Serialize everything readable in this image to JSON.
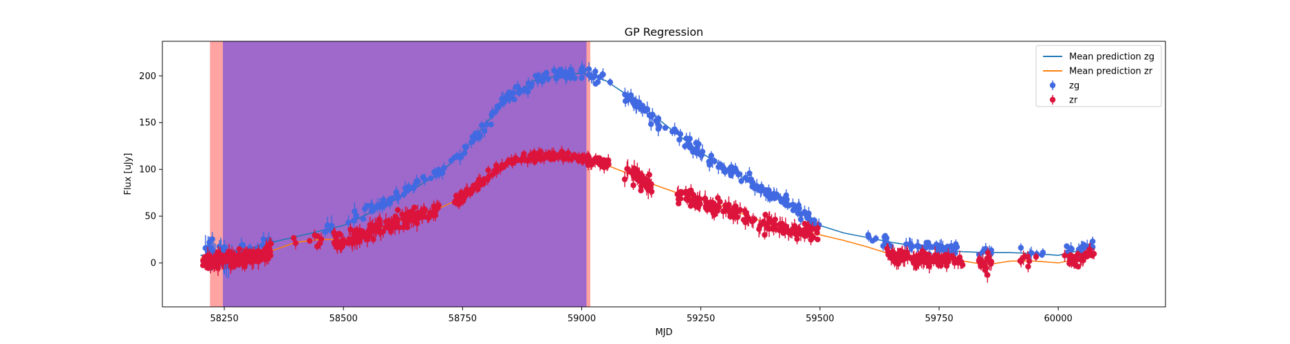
{
  "chart_data": {
    "type": "scatter",
    "title": "GP Regression",
    "xlabel": "MJD",
    "ylabel": "Flux [uJy]",
    "xlim": [
      58120,
      60225
    ],
    "ylim": [
      -47,
      237
    ],
    "xticks": [
      58250,
      58500,
      58750,
      59000,
      59250,
      59500,
      59750,
      60000
    ],
    "yticks": [
      0,
      50,
      100,
      150,
      200
    ],
    "grid": false,
    "legend_position": "top-right",
    "shaded_regions": [
      {
        "x": [
          58220,
          59018
        ],
        "color": "#ff9999",
        "label": ""
      },
      {
        "x": [
          58247,
          59010
        ],
        "color": "#9966cc",
        "label": ""
      }
    ],
    "series": [
      {
        "name": "Mean prediction zg",
        "kind": "line",
        "color": "#1f77b4",
        "x": [
          58200,
          58230,
          58260,
          58300,
          58350,
          58400,
          58450,
          58500,
          58550,
          58600,
          58650,
          58700,
          58750,
          58800,
          58850,
          58900,
          58950,
          59000,
          59050,
          59100,
          59150,
          59200,
          59250,
          59300,
          59350,
          59400,
          59450,
          59500,
          59550,
          59600,
          59650,
          59700,
          59750,
          59800,
          59850,
          59900,
          59950,
          60000,
          60050,
          60070
        ],
        "y": [
          8,
          10,
          12,
          15,
          22,
          28,
          34,
          40,
          52,
          65,
          80,
          95,
          118,
          150,
          178,
          195,
          200,
          203,
          195,
          178,
          158,
          138,
          118,
          102,
          88,
          74,
          57,
          40,
          32,
          27,
          22,
          18,
          14,
          12,
          11,
          11,
          10,
          8,
          14,
          18
        ]
      },
      {
        "name": "Mean prediction zr",
        "kind": "line",
        "color": "#ff7f0e",
        "x": [
          58200,
          58230,
          58260,
          58300,
          58350,
          58400,
          58450,
          58500,
          58550,
          58600,
          58650,
          58700,
          58750,
          58800,
          58850,
          58900,
          58950,
          59000,
          59050,
          59100,
          59150,
          59200,
          59250,
          59300,
          59350,
          59400,
          59450,
          59500,
          59550,
          59600,
          59650,
          59700,
          59750,
          59800,
          59850,
          59900,
          59950,
          60000,
          60050,
          60070
        ],
        "y": [
          5,
          4,
          3,
          6,
          13,
          22,
          25,
          25,
          32,
          42,
          50,
          58,
          70,
          92,
          107,
          113,
          113,
          112,
          105,
          95,
          84,
          75,
          68,
          60,
          50,
          40,
          35,
          30,
          24,
          17,
          9,
          6,
          3,
          2,
          -2,
          2,
          2,
          0,
          5,
          8
        ]
      },
      {
        "name": "zg",
        "kind": "points",
        "color": "#4169e1",
        "anchors": [
          [
            58200,
            8
          ],
          [
            58230,
            8
          ],
          [
            58260,
            8
          ],
          [
            58300,
            13
          ],
          [
            58350,
            20
          ],
          [
            58400,
            28
          ],
          [
            58450,
            34
          ],
          [
            58500,
            42
          ],
          [
            58550,
            55
          ],
          [
            58600,
            68
          ],
          [
            58650,
            82
          ],
          [
            58700,
            96
          ],
          [
            58750,
            118
          ],
          [
            58800,
            150
          ],
          [
            58850,
            180
          ],
          [
            58900,
            195
          ],
          [
            58950,
            203
          ],
          [
            59000,
            205
          ],
          [
            59050,
            193
          ],
          [
            59100,
            178
          ],
          [
            59150,
            155
          ],
          [
            59200,
            137
          ],
          [
            59250,
            118
          ],
          [
            59300,
            102
          ],
          [
            59350,
            88
          ],
          [
            59400,
            72
          ],
          [
            59450,
            58
          ],
          [
            59500,
            40
          ],
          [
            59550,
            32
          ],
          [
            59600,
            28
          ],
          [
            59650,
            22
          ],
          [
            59700,
            17
          ],
          [
            59750,
            14
          ],
          [
            59800,
            12
          ],
          [
            59850,
            11
          ],
          [
            59900,
            11
          ],
          [
            59950,
            10
          ],
          [
            60000,
            8
          ],
          [
            60050,
            14
          ],
          [
            60070,
            18
          ]
        ],
        "segments": [
          [
            58210,
            58260,
            40,
            10
          ],
          [
            58260,
            58350,
            30,
            6
          ],
          [
            58450,
            58530,
            8,
            9
          ],
          [
            58540,
            59060,
            150,
            5
          ],
          [
            59090,
            59500,
            140,
            5
          ],
          [
            59590,
            59650,
            12,
            4
          ],
          [
            59680,
            59790,
            45,
            5
          ],
          [
            59830,
            59860,
            8,
            4
          ],
          [
            59920,
            59970,
            8,
            4
          ],
          [
            60010,
            60075,
            20,
            5
          ]
        ]
      },
      {
        "name": "zr",
        "kind": "points",
        "color": "#dc143c",
        "anchors": [
          [
            58200,
            0
          ],
          [
            58230,
            2
          ],
          [
            58260,
            3
          ],
          [
            58300,
            6
          ],
          [
            58350,
            13
          ],
          [
            58400,
            21
          ],
          [
            58450,
            26
          ],
          [
            58500,
            25
          ],
          [
            58550,
            32
          ],
          [
            58600,
            42
          ],
          [
            58650,
            50
          ],
          [
            58700,
            58
          ],
          [
            58750,
            70
          ],
          [
            58800,
            93
          ],
          [
            58850,
            108
          ],
          [
            58900,
            114
          ],
          [
            58950,
            114
          ],
          [
            59000,
            113
          ],
          [
            59050,
            107
          ],
          [
            59100,
            95
          ],
          [
            59150,
            83
          ],
          [
            59200,
            74
          ],
          [
            59250,
            66
          ],
          [
            59300,
            58
          ],
          [
            59350,
            48
          ],
          [
            59400,
            40
          ],
          [
            59450,
            35
          ],
          [
            59500,
            30
          ],
          [
            59550,
            24
          ],
          [
            59600,
            17
          ],
          [
            59650,
            8
          ],
          [
            59700,
            5
          ],
          [
            59750,
            3
          ],
          [
            59800,
            1
          ],
          [
            59850,
            -2
          ],
          [
            59900,
            1
          ],
          [
            59950,
            2
          ],
          [
            60000,
            0
          ],
          [
            60050,
            5
          ],
          [
            60070,
            8
          ]
        ],
        "segments": [
          [
            58205,
            58350,
            130,
            6
          ],
          [
            58390,
            58470,
            8,
            5
          ],
          [
            58480,
            58700,
            160,
            6
          ],
          [
            58730,
            59060,
            170,
            4
          ],
          [
            59090,
            59150,
            40,
            7
          ],
          [
            59200,
            59500,
            160,
            6
          ],
          [
            59640,
            59800,
            110,
            6
          ],
          [
            59830,
            59860,
            20,
            6
          ],
          [
            59920,
            59960,
            8,
            5
          ],
          [
            60010,
            60075,
            30,
            5
          ]
        ]
      }
    ]
  }
}
